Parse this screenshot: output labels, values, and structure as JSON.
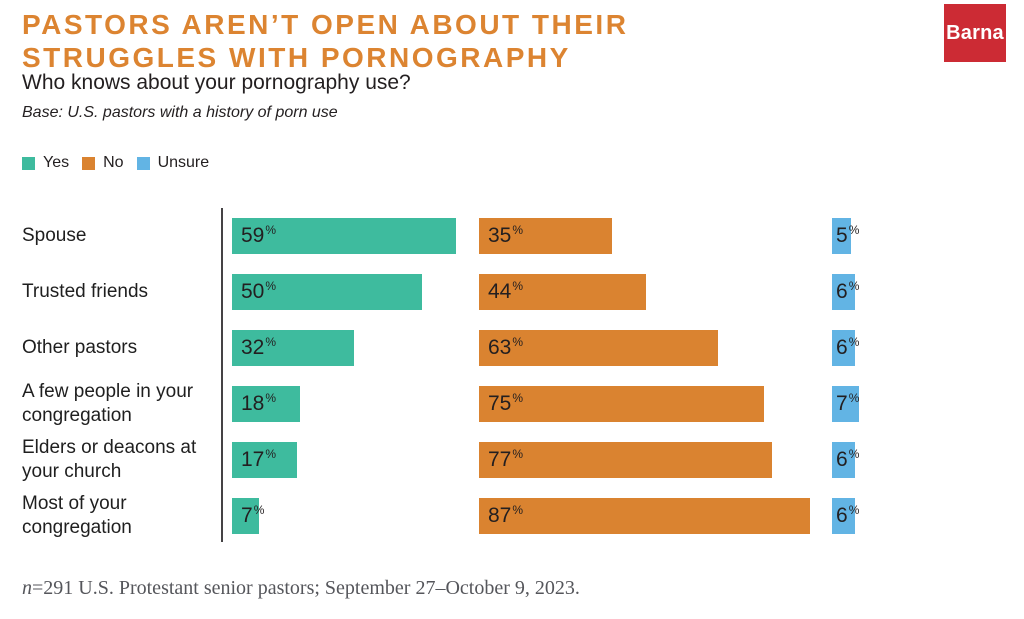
{
  "title": {
    "line1": "PASTORS AREN’T OPEN ABOUT THEIR",
    "line2": "STRUGGLES WITH PORNOGRAPHY"
  },
  "subtitle": "Who knows about your pornography use?",
  "base_note": "Base: U.S. pastors with a history of porn use",
  "logo": {
    "text": "Barna",
    "bg_color": "#cc2b34"
  },
  "legend": [
    {
      "label": "Yes",
      "color": "#3ebb9e"
    },
    {
      "label": "No",
      "color": "#da8330"
    },
    {
      "label": "Unsure",
      "color": "#62b4e4"
    }
  ],
  "footnote": {
    "n": "n",
    "rest": "=291 U.S. Protestant senior pastors; September 27–October 9, 2023."
  },
  "colors": {
    "title_orange": "#dc8431",
    "yes_teal": "#3ebb9e",
    "no_orange": "#da8330",
    "unsure_blue": "#62b4e4",
    "logo_red": "#cc2b34",
    "axis": "#454345",
    "text_dark": "#231f20",
    "footnote_gray": "#55565b"
  },
  "chart_data": {
    "type": "bar",
    "orientation": "horizontal",
    "title": "Who knows about your pornography use?",
    "categories": [
      "Spouse",
      "Trusted friends",
      "Other pastors",
      "A few people in your congregation",
      "Elders or deacons at your church",
      "Most of your congregation"
    ],
    "series": [
      {
        "name": "Yes",
        "color": "#3ebb9e",
        "values": [
          59,
          50,
          32,
          18,
          17,
          7
        ]
      },
      {
        "name": "No",
        "color": "#da8330",
        "values": [
          35,
          44,
          63,
          75,
          77,
          87
        ]
      },
      {
        "name": "Unsure",
        "color": "#62b4e4",
        "values": [
          5,
          6,
          6,
          7,
          6,
          6
        ]
      }
    ],
    "value_suffix": "%",
    "xlim": [
      0,
      100
    ],
    "grid": false,
    "legend_position": "top-left"
  }
}
